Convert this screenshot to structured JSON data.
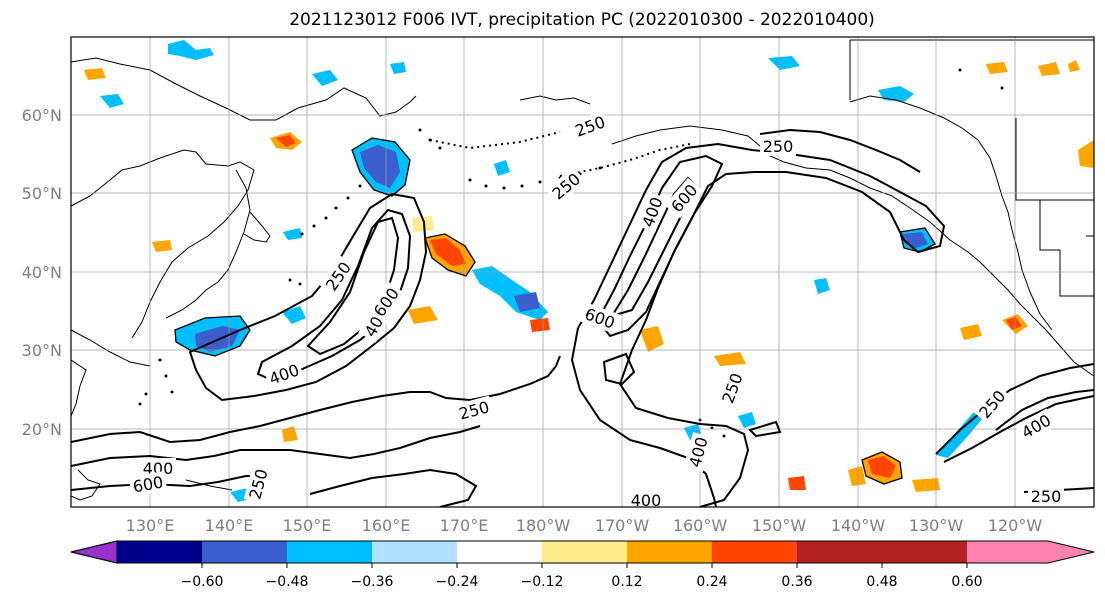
{
  "title": "2021123012 F006 IVT, precipitation PC (2022010300 - 2022010400)",
  "lat_labels": [
    "60°N",
    "50°N",
    "40°N",
    "30°N",
    "20°N"
  ],
  "lon_labels": [
    "130°E",
    "140°E",
    "150°E",
    "160°E",
    "170°E",
    "180°W",
    "170°W",
    "160°W",
    "150°W",
    "140°W",
    "130°W",
    "120°W"
  ],
  "ivt_contour_labels": [
    "250",
    "250",
    "250",
    "250",
    "250",
    "250",
    "250",
    "250",
    "250",
    "400",
    "400",
    "400",
    "400",
    "400",
    "400",
    "400",
    "600",
    "600",
    "600",
    "600"
  ],
  "colorbar": {
    "ticks": [
      "−0.60",
      "−0.48",
      "−0.36",
      "−0.24",
      "−0.12",
      "0.12",
      "0.24",
      "0.36",
      "0.48",
      "0.60"
    ],
    "colors": [
      "#9932cc",
      "#00008b",
      "#3a5fcd",
      "#00bfff",
      "#b0e2ff",
      "#ffffff",
      "#ffec8b",
      "#ffa500",
      "#ff4500",
      "#b22222",
      "#ff83b0"
    ]
  }
}
